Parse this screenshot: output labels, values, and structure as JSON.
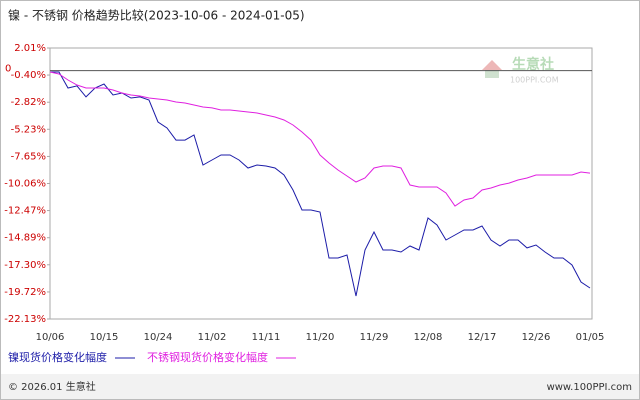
{
  "chart_data": {
    "type": "line",
    "title": "镍 - 不锈钢 价格趋势比较(2023-10-06 - 2024-01-05)",
    "xticks": [
      "10/06",
      "10/15",
      "10/24",
      "11/02",
      "11/11",
      "11/20",
      "11/29",
      "12/08",
      "12/17",
      "12/26",
      "01/05"
    ],
    "ylim": [
      -22.13,
      2.01
    ],
    "yticks": [
      {
        "value": 2.01,
        "label": "2.01%"
      },
      {
        "value": -0.4,
        "label": "-0.40%"
      },
      {
        "value": -2.82,
        "label": "-2.82%"
      },
      {
        "value": -5.23,
        "label": "-5.23%"
      },
      {
        "value": -7.65,
        "label": "-7.65%"
      },
      {
        "value": -10.06,
        "label": "-10.06%"
      },
      {
        "value": -12.47,
        "label": "-12.47%"
      },
      {
        "value": -14.89,
        "label": "-14.89%"
      },
      {
        "value": -17.3,
        "label": "-17.30%"
      },
      {
        "value": -19.72,
        "label": "-19.72%"
      },
      {
        "value": -22.13,
        "label": "-22.13%"
      }
    ],
    "reference_line": 0,
    "grid": false,
    "series": [
      {
        "name": "镍现货价格变化幅度",
        "color": "#1c1ca8",
        "values": [
          -0.13,
          -0.13,
          -1.55,
          -1.37,
          -2.35,
          -1.55,
          -1.2,
          -2.18,
          -2.0,
          -2.44,
          -2.35,
          -2.62,
          -4.58,
          -5.12,
          -6.19,
          -6.19,
          -5.74,
          -8.41,
          -7.97,
          -7.52,
          -7.52,
          -7.97,
          -8.68,
          -8.41,
          -8.5,
          -8.68,
          -9.3,
          -10.64,
          -12.42,
          -12.42,
          -12.6,
          -16.7,
          -16.7,
          -16.43,
          -20.08,
          -15.98,
          -14.38,
          -15.98,
          -15.98,
          -16.16,
          -15.63,
          -15.98,
          -13.13,
          -13.76,
          -15.09,
          -14.65,
          -14.2,
          -14.2,
          -13.85,
          -15.09,
          -15.63,
          -15.09,
          -15.09,
          -15.8,
          -15.54,
          -16.16,
          -16.7,
          -16.7,
          -17.32,
          -18.83,
          -19.37
        ]
      },
      {
        "name": "不锈钢现货价格变化幅度",
        "color": "#e020e0",
        "values": [
          -0.13,
          -0.31,
          -0.84,
          -1.29,
          -1.55,
          -1.55,
          -1.55,
          -1.73,
          -2.0,
          -2.18,
          -2.27,
          -2.44,
          -2.53,
          -2.62,
          -2.8,
          -2.89,
          -3.07,
          -3.25,
          -3.33,
          -3.51,
          -3.51,
          -3.6,
          -3.69,
          -3.78,
          -3.96,
          -4.14,
          -4.4,
          -4.85,
          -5.47,
          -6.19,
          -7.52,
          -8.23,
          -8.86,
          -9.39,
          -9.93,
          -9.57,
          -8.68,
          -8.5,
          -8.5,
          -8.68,
          -10.19,
          -10.37,
          -10.37,
          -10.37,
          -10.91,
          -12.06,
          -11.53,
          -11.35,
          -10.64,
          -10.46,
          -10.19,
          -10.02,
          -9.75,
          -9.57,
          -9.3,
          -9.3,
          -9.3,
          -9.3,
          -9.3,
          -9.04,
          -9.13
        ]
      }
    ],
    "watermark": {
      "name": "生意社",
      "url": "100PPI.COM"
    },
    "footer": {
      "copyright": "© 2026.01 生意社",
      "site": "www.100PPI.com"
    }
  }
}
